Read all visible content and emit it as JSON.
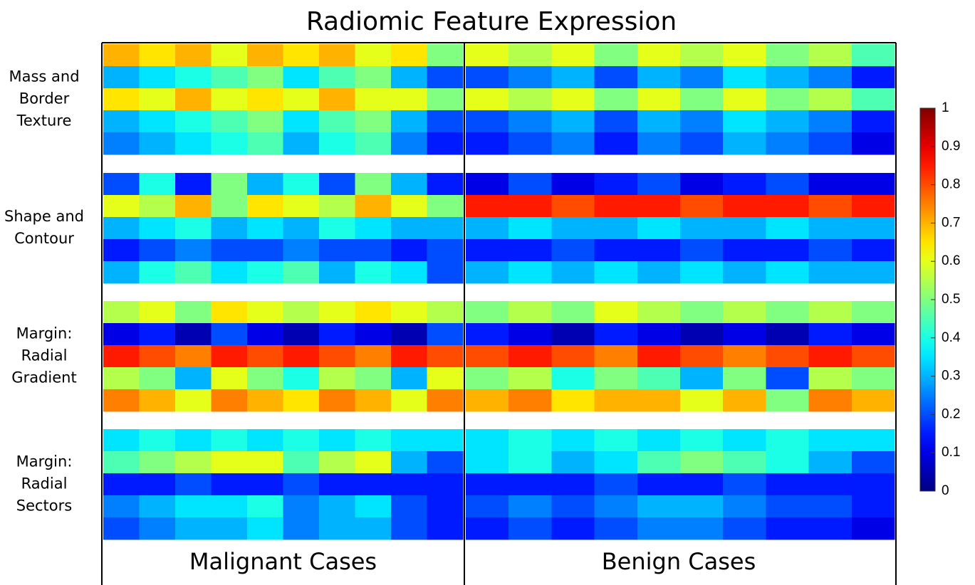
{
  "chart_data": {
    "type": "heatmap",
    "title": "Radiomic Feature Expression",
    "colormap": "jet",
    "columns": [
      "Malignant Cases",
      "Benign Cases"
    ],
    "rows": [
      {
        "label": [
          "Mass and",
          "Border",
          "Texture"
        ],
        "values": [
          [
            [
              0.7,
              0.65,
              0.7,
              0.6,
              0.7,
              0.65,
              0.7,
              0.6,
              0.65,
              0.5
            ],
            [
              0.3,
              0.35,
              0.4,
              0.45,
              0.5,
              0.35,
              0.45,
              0.5,
              0.3,
              0.2
            ],
            [
              0.65,
              0.6,
              0.7,
              0.6,
              0.65,
              0.6,
              0.7,
              0.6,
              0.6,
              0.5
            ],
            [
              0.3,
              0.35,
              0.4,
              0.45,
              0.5,
              0.35,
              0.45,
              0.5,
              0.3,
              0.2
            ],
            [
              0.25,
              0.3,
              0.35,
              0.4,
              0.45,
              0.3,
              0.4,
              0.45,
              0.25,
              0.15
            ]
          ],
          [
            [
              0.6,
              0.55,
              0.6,
              0.5,
              0.6,
              0.55,
              0.6,
              0.5,
              0.55,
              0.45
            ],
            [
              0.2,
              0.25,
              0.3,
              0.2,
              0.3,
              0.25,
              0.35,
              0.3,
              0.25,
              0.15
            ],
            [
              0.6,
              0.55,
              0.6,
              0.5,
              0.6,
              0.5,
              0.6,
              0.5,
              0.55,
              0.45
            ],
            [
              0.2,
              0.25,
              0.3,
              0.2,
              0.3,
              0.25,
              0.35,
              0.3,
              0.25,
              0.15
            ],
            [
              0.15,
              0.2,
              0.25,
              0.15,
              0.25,
              0.2,
              0.3,
              0.25,
              0.2,
              0.1
            ]
          ]
        ]
      },
      {
        "label": [
          "Shape and",
          "Contour"
        ],
        "values": [
          [
            [
              0.2,
              0.4,
              0.15,
              0.5,
              0.3,
              0.4,
              0.2,
              0.5,
              0.3,
              0.15
            ],
            [
              0.6,
              0.55,
              0.7,
              0.5,
              0.65,
              0.6,
              0.55,
              0.7,
              0.6,
              0.5
            ],
            [
              0.3,
              0.35,
              0.4,
              0.3,
              0.35,
              0.3,
              0.4,
              0.35,
              0.3,
              0.3
            ],
            [
              0.15,
              0.2,
              0.25,
              0.2,
              0.2,
              0.25,
              0.2,
              0.2,
              0.15,
              0.2
            ],
            [
              0.3,
              0.4,
              0.45,
              0.35,
              0.4,
              0.45,
              0.3,
              0.4,
              0.35,
              0.2
            ]
          ],
          [
            [
              0.1,
              0.2,
              0.1,
              0.15,
              0.2,
              0.1,
              0.15,
              0.2,
              0.1,
              0.1
            ],
            [
              0.85,
              0.85,
              0.8,
              0.85,
              0.85,
              0.8,
              0.85,
              0.85,
              0.8,
              0.85
            ],
            [
              0.3,
              0.35,
              0.3,
              0.3,
              0.35,
              0.3,
              0.3,
              0.35,
              0.3,
              0.3
            ],
            [
              0.15,
              0.15,
              0.2,
              0.15,
              0.15,
              0.2,
              0.15,
              0.15,
              0.2,
              0.15
            ],
            [
              0.3,
              0.35,
              0.3,
              0.35,
              0.3,
              0.35,
              0.3,
              0.35,
              0.3,
              0.3
            ]
          ]
        ]
      },
      {
        "label": [
          "Margin:",
          "Radial",
          "Gradient"
        ],
        "values": [
          [
            [
              0.55,
              0.6,
              0.5,
              0.65,
              0.6,
              0.55,
              0.6,
              0.65,
              0.6,
              0.55
            ],
            [
              0.1,
              0.15,
              0.05,
              0.2,
              0.1,
              0.05,
              0.15,
              0.1,
              0.05,
              0.2
            ],
            [
              0.85,
              0.8,
              0.75,
              0.85,
              0.8,
              0.85,
              0.8,
              0.75,
              0.85,
              0.8
            ],
            [
              0.55,
              0.5,
              0.3,
              0.6,
              0.5,
              0.4,
              0.55,
              0.5,
              0.3,
              0.6
            ],
            [
              0.75,
              0.7,
              0.6,
              0.75,
              0.7,
              0.65,
              0.75,
              0.7,
              0.6,
              0.75
            ]
          ],
          [
            [
              0.5,
              0.55,
              0.5,
              0.6,
              0.55,
              0.5,
              0.55,
              0.5,
              0.55,
              0.5
            ],
            [
              0.15,
              0.1,
              0.05,
              0.15,
              0.1,
              0.05,
              0.1,
              0.05,
              0.15,
              0.1
            ],
            [
              0.8,
              0.85,
              0.8,
              0.75,
              0.85,
              0.8,
              0.75,
              0.8,
              0.85,
              0.8
            ],
            [
              0.5,
              0.55,
              0.4,
              0.5,
              0.45,
              0.3,
              0.5,
              0.2,
              0.55,
              0.5
            ],
            [
              0.7,
              0.75,
              0.65,
              0.7,
              0.7,
              0.6,
              0.7,
              0.5,
              0.75,
              0.7
            ]
          ]
        ]
      },
      {
        "label": [
          "Margin:",
          "Radial",
          "Sectors"
        ],
        "values": [
          [
            [
              0.35,
              0.4,
              0.35,
              0.4,
              0.35,
              0.4,
              0.35,
              0.4,
              0.35,
              0.35
            ],
            [
              0.45,
              0.5,
              0.55,
              0.6,
              0.6,
              0.45,
              0.55,
              0.6,
              0.3,
              0.2
            ],
            [
              0.15,
              0.15,
              0.2,
              0.15,
              0.15,
              0.2,
              0.15,
              0.15,
              0.15,
              0.15
            ],
            [
              0.25,
              0.3,
              0.35,
              0.35,
              0.4,
              0.25,
              0.3,
              0.35,
              0.2,
              0.15
            ],
            [
              0.2,
              0.25,
              0.3,
              0.3,
              0.35,
              0.25,
              0.3,
              0.3,
              0.2,
              0.15
            ]
          ],
          [
            [
              0.35,
              0.4,
              0.35,
              0.4,
              0.35,
              0.4,
              0.35,
              0.4,
              0.35,
              0.35
            ],
            [
              0.35,
              0.4,
              0.3,
              0.35,
              0.45,
              0.5,
              0.45,
              0.4,
              0.3,
              0.2
            ],
            [
              0.15,
              0.15,
              0.15,
              0.2,
              0.15,
              0.15,
              0.2,
              0.15,
              0.15,
              0.15
            ],
            [
              0.2,
              0.25,
              0.2,
              0.25,
              0.3,
              0.3,
              0.25,
              0.2,
              0.2,
              0.15
            ],
            [
              0.15,
              0.2,
              0.15,
              0.2,
              0.25,
              0.25,
              0.2,
              0.15,
              0.15,
              0.1
            ]
          ]
        ]
      }
    ],
    "zlim": [
      0,
      1
    ],
    "zticks": [
      0,
      0.1,
      0.2,
      0.3,
      0.4,
      0.5,
      0.6,
      0.7,
      0.8,
      0.9,
      1
    ]
  }
}
